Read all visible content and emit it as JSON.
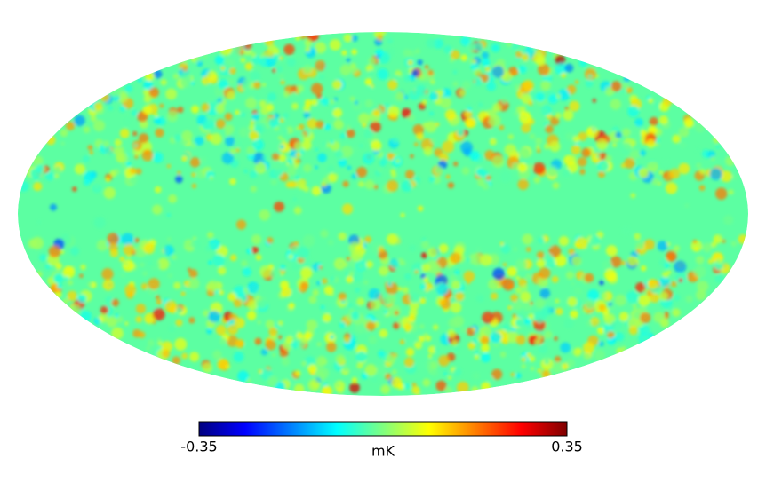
{
  "map": {
    "type": "mollweide",
    "colorbar": {
      "lim": [
        -0.35,
        0.35
      ],
      "ticks": [
        -0.35,
        0.35
      ],
      "label": "mK",
      "colormap": [
        "#00007f",
        "#0000ff",
        "#007fff",
        "#00ffff",
        "#7fff7f",
        "#ffff00",
        "#ff7f00",
        "#ff0000",
        "#7f0000"
      ]
    }
  }
}
